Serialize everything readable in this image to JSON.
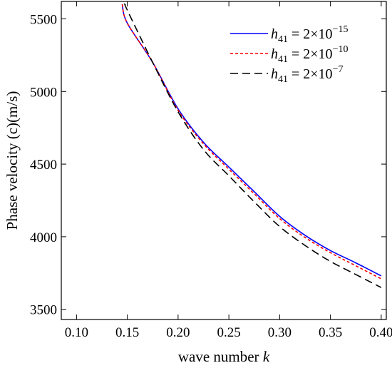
{
  "chart_data": {
    "type": "line",
    "title": "",
    "xlabel_text": "wave number ",
    "xlabel_var": "k",
    "ylabel": "Phase velocity (c)(m/s)",
    "xlim": [
      0.085,
      0.405
    ],
    "ylim": [
      3430,
      5620
    ],
    "x_ticks": [
      0.1,
      0.15,
      0.2,
      0.25,
      0.3,
      0.35,
      0.4
    ],
    "x_tick_labels": [
      "0.10",
      "0.15",
      "0.20",
      "0.25",
      "0.30",
      "0.35",
      "0.40"
    ],
    "y_ticks": [
      3500,
      4000,
      4500,
      5000,
      5500
    ],
    "y_tick_labels": [
      "3500",
      "4000",
      "4500",
      "5000",
      "5500"
    ],
    "grid": false,
    "legend_position": "top-right",
    "series": [
      {
        "var": "h",
        "sub": "41",
        "eq": " = 2×10",
        "sup": "−15",
        "color": "#0000ff",
        "dash": "",
        "width": 1.6,
        "x": [
          0.145,
          0.15,
          0.175,
          0.2,
          0.225,
          0.25,
          0.275,
          0.3,
          0.325,
          0.35,
          0.375,
          0.4
        ],
        "y": [
          5600,
          5470,
          5200,
          4880,
          4650,
          4480,
          4310,
          4140,
          4010,
          3905,
          3820,
          3730
        ]
      },
      {
        "var": "h",
        "sub": "41",
        "eq": " = 2×10",
        "sup": "−10",
        "color": "#ff0000",
        "dash": "4,3",
        "width": 1.6,
        "x": [
          0.145,
          0.15,
          0.175,
          0.2,
          0.225,
          0.25,
          0.275,
          0.3,
          0.325,
          0.35,
          0.375,
          0.4
        ],
        "y": [
          5600,
          5470,
          5200,
          4870,
          4640,
          4465,
          4295,
          4125,
          3995,
          3890,
          3800,
          3710
        ]
      },
      {
        "var": "h",
        "sub": "41",
        "eq": " = 2×10",
        "sup": "−7",
        "color": "#000000",
        "dash": "11,6",
        "width": 1.6,
        "x": [
          0.148,
          0.15,
          0.175,
          0.2,
          0.225,
          0.25,
          0.275,
          0.3,
          0.325,
          0.35,
          0.375,
          0.4
        ],
        "y": [
          5600,
          5560,
          5200,
          4860,
          4600,
          4420,
          4240,
          4070,
          3940,
          3830,
          3740,
          3650
        ]
      }
    ]
  }
}
